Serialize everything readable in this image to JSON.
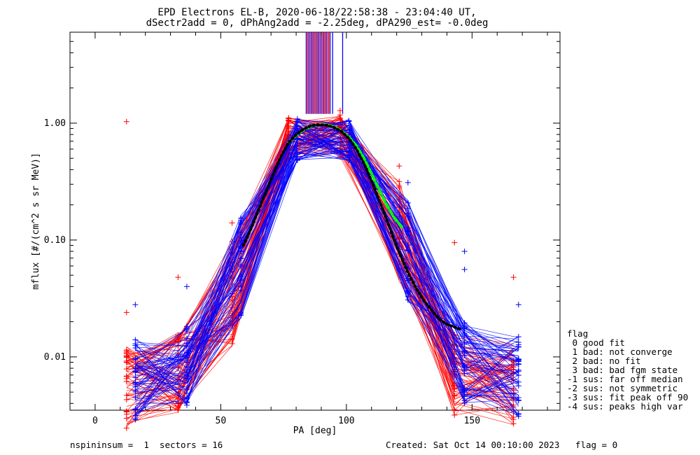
{
  "chart_data": {
    "type": "scatter",
    "title_line1": "EPD Electrons EL-B, 2020-06-18/22:58:38 - 23:04:40 UT,",
    "title_line2": "dSectr2add = 0, dPhAng2add = -2.25deg, dPA290_est=  -0.0deg",
    "xlabel": "PA [deg]",
    "ylabel": "mflux [#/(cm^2 s sr MeV)]",
    "xlim": [
      -10,
      185
    ],
    "ylim": [
      0.0035,
      6.0
    ],
    "yscale": "log",
    "x_ticks": [
      0,
      50,
      100,
      150
    ],
    "x_tick_labels": [
      "0",
      "50",
      "100",
      "150"
    ],
    "y_ticks": [
      0.01,
      0.1,
      1.0
    ],
    "y_tick_labels": [
      "0.01",
      "0.10",
      "1.00"
    ],
    "series": [
      {
        "color": "#ff0000",
        "x": [
          12.5,
          33.0,
          54.5,
          77.0,
          97.5,
          121.0,
          143.0,
          166.5
        ],
        "values": [
          0.0055,
          0.0075,
          0.035,
          0.75,
          0.78,
          0.12,
          0.007,
          0.0058
        ]
      },
      {
        "color": "#0000ff",
        "x": [
          16.0,
          36.5,
          58.0,
          80.5,
          101.0,
          124.5,
          147.0,
          168.5
        ],
        "values": [
          0.0065,
          0.0085,
          0.06,
          0.72,
          0.72,
          0.08,
          0.009,
          0.0068
        ]
      },
      {
        "color": "#00ff00",
        "x": [
          77,
          80,
          83,
          86,
          89,
          92,
          95,
          98,
          101,
          104,
          107,
          110,
          113,
          116,
          119,
          122
        ],
        "values": [
          0.68,
          0.79,
          0.88,
          0.94,
          0.97,
          0.97,
          0.93,
          0.86,
          0.76,
          0.64,
          0.5,
          0.37,
          0.27,
          0.2,
          0.155,
          0.13
        ]
      },
      {
        "color": "#000000",
        "x": [
          59,
          62,
          65,
          68,
          71,
          74,
          77,
          80,
          83,
          86,
          89,
          92,
          95,
          98,
          101,
          104,
          107,
          110,
          113,
          116,
          119,
          122,
          125,
          128,
          131,
          134,
          137,
          140,
          143,
          146
        ],
        "values": [
          0.09,
          0.125,
          0.18,
          0.26,
          0.37,
          0.52,
          0.68,
          0.8,
          0.89,
          0.95,
          0.97,
          0.96,
          0.92,
          0.85,
          0.74,
          0.6,
          0.45,
          0.32,
          0.22,
          0.15,
          0.1,
          0.07,
          0.05,
          0.038,
          0.03,
          0.025,
          0.021,
          0.019,
          0.018,
          0.017
        ]
      }
    ],
    "red_outlier_points": [
      [
        12.5,
        1.03
      ],
      [
        12.5,
        0.024
      ],
      [
        33.0,
        0.048
      ],
      [
        54.5,
        0.14
      ],
      [
        143.0,
        0.095
      ],
      [
        166.5,
        0.048
      ],
      [
        97.5,
        1.28
      ],
      [
        121.0,
        0.43
      ]
    ],
    "blue_outlier_points": [
      [
        16.0,
        0.028
      ],
      [
        36.5,
        0.04
      ],
      [
        147.0,
        0.08
      ],
      [
        147.0,
        0.056
      ],
      [
        168.5,
        0.028
      ],
      [
        124.5,
        0.31
      ]
    ],
    "vertical_bars": {
      "red_x": [
        84.5,
        85.5,
        86.5,
        87.5,
        88.5,
        89.5,
        90.5,
        91.5,
        92.5,
        93.0
      ],
      "blue_x": [
        84.0,
        85.0,
        86.0,
        87.0,
        88.0,
        89.0,
        90.0,
        91.0,
        92.0,
        93.5,
        94.5,
        98.5
      ],
      "from": 1.2,
      "to": 6.0
    }
  },
  "legend": {
    "items": [
      "flag",
      " 0 good fit",
      " 1 bad: not converge",
      " 2 bad: no fit",
      " 3 bad: bad fgm state",
      "-1 sus: far off median",
      "-2 sus: not symmetric",
      "-3 sus: fit peak off 90",
      "-4 sus: peaks high var"
    ]
  },
  "footer": {
    "left": "nspininsum =  1  sectors = 16",
    "right": "Created: Sat Oct 14 00:10:00 2023   flag = 0"
  }
}
